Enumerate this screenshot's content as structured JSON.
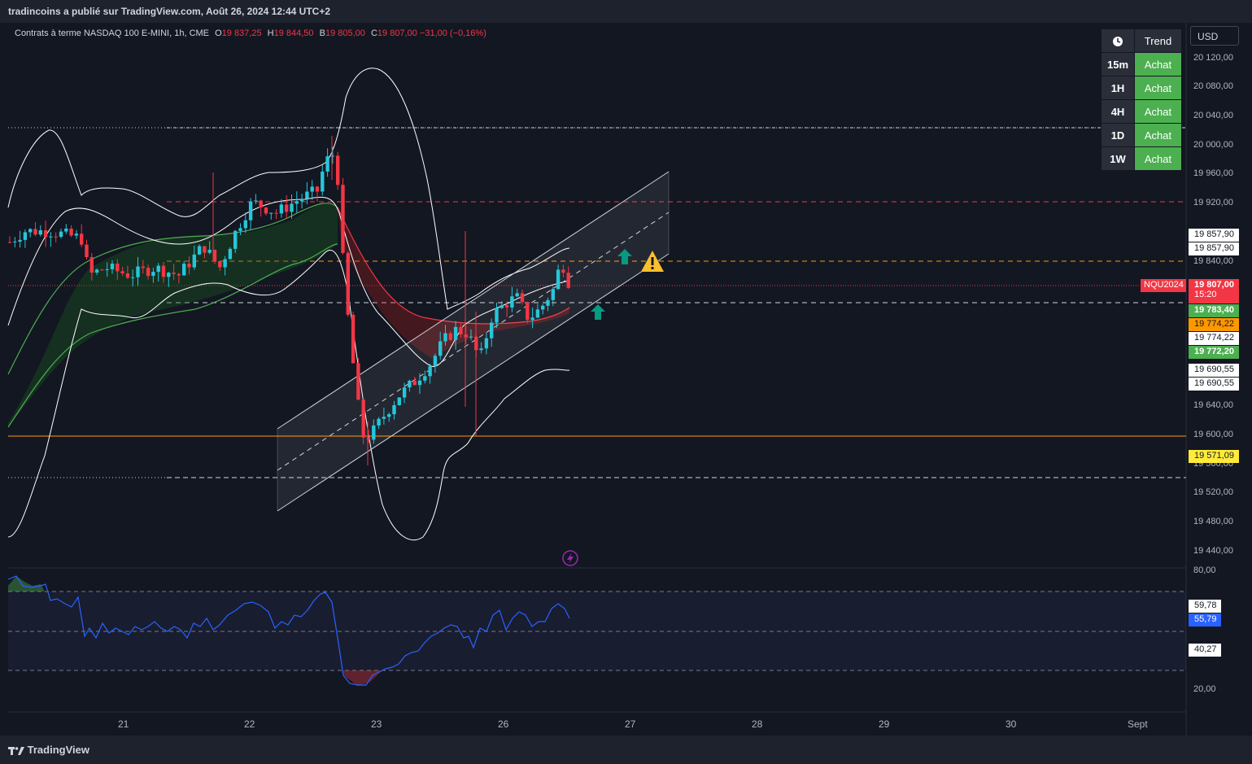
{
  "header": {
    "publisher": "tradincoins a publié sur TradingView.com, Août 26, 2024 12:44 UTC+2"
  },
  "legend": {
    "symbol": "Contrats à terme NASDAQ 100 E-MINI, 1h, CME",
    "open_label": "O",
    "open": "19 837,25",
    "high_label": "H",
    "high": "19 844,50",
    "low_label": "B",
    "low": "19 805,00",
    "close_label": "C",
    "close": "19 807,00",
    "change": "−31,00 (−0,16%)"
  },
  "currency": "USD",
  "trend_table": {
    "icon": "clock-icon",
    "header": "Trend",
    "rows": [
      {
        "tf": "15m",
        "signal": "Achat"
      },
      {
        "tf": "1H",
        "signal": "Achat"
      },
      {
        "tf": "4H",
        "signal": "Achat"
      },
      {
        "tf": "1D",
        "signal": "Achat"
      },
      {
        "tf": "1W",
        "signal": "Achat"
      }
    ]
  },
  "price_axis": [
    "20 120,00",
    "20 080,00",
    "20 040,00",
    "20 000,00",
    "19 960,00",
    "19 920,00",
    "19 840,00",
    "19 640,00",
    "19 600,00",
    "19 560,00",
    "19 520,00",
    "19 480,00",
    "19 440,00"
  ],
  "price_tags": {
    "t1": "19 857,90",
    "t2": "19 857,90",
    "last": "19 807,00",
    "countdown": "15:20",
    "g1": "19 783,40",
    "orange": "19 774,22",
    "white": "19 774,22",
    "g2": "19 772,20",
    "w1": "19 690,55",
    "w2": "19 690,55",
    "yellow": "19 571,09",
    "symbol_tag": "NQU2024"
  },
  "rsi_axis": {
    "top": "80,00",
    "bottom": "20,00",
    "t1": "59,78",
    "t2": "55,79",
    "t3": "40,27"
  },
  "time_axis": [
    "21",
    "22",
    "23",
    "26",
    "27",
    "28",
    "29",
    "30",
    "Sept"
  ],
  "footer": {
    "brand": "TradingView"
  },
  "colors": {
    "up": "#26c6da",
    "down": "#f23645",
    "bg": "#131722",
    "buy": "#4caf50",
    "band": "#ffffff",
    "rsi": "#2962ff"
  },
  "chart_data": {
    "type": "candlestick",
    "title": "Contrats à terme NASDAQ 100 E-MINI, 1h, CME",
    "ylim": [
      19420,
      20140
    ],
    "x_categories": [
      "21",
      "22",
      "23",
      "26",
      "27",
      "28",
      "29",
      "30",
      "Sept"
    ],
    "last_close": 19807.0,
    "ohlc_last": {
      "open": 19837.25,
      "high": 19844.5,
      "low": 19805.0,
      "close": 19807.0
    },
    "levels": [
      19857.9,
      19783.4,
      19774.22,
      19772.2,
      19690.55,
      19571.09
    ],
    "rsi": {
      "last": 55.79,
      "levels": [
        59.78,
        40.27
      ],
      "range": [
        20,
        80
      ]
    }
  }
}
